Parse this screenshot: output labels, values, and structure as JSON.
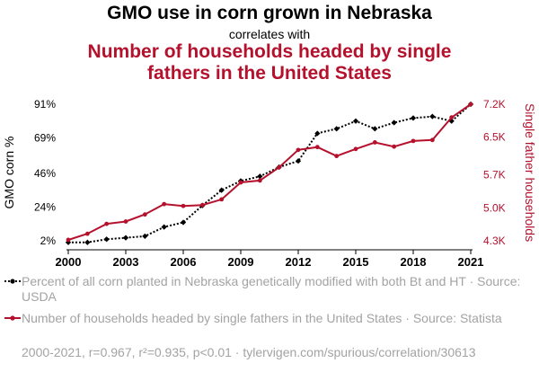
{
  "header": {
    "title": "GMO use in corn grown in Nebraska",
    "connector": "correlates with",
    "title2": "Number of households headed by single fathers in the United States"
  },
  "chart_data": {
    "type": "line",
    "x": [
      2000,
      2001,
      2002,
      2003,
      2004,
      2005,
      2006,
      2007,
      2008,
      2009,
      2010,
      2011,
      2012,
      2013,
      2014,
      2015,
      2016,
      2017,
      2018,
      2019,
      2020,
      2021
    ],
    "series": [
      {
        "name": "Percent of all corn planted in Nebraska genetically modified with both Bt and HT · Source: USDA",
        "axis": "left",
        "color": "#000000",
        "style": "dotted",
        "values": [
          1,
          1,
          3,
          4,
          5,
          11,
          14,
          25,
          35,
          41,
          44,
          50,
          54,
          72,
          75,
          80,
          75,
          79,
          82,
          83,
          80,
          91
        ]
      },
      {
        "name": "Number of households headed by single fathers in the United States · Source: Statista",
        "axis": "right",
        "color": "#b5112d",
        "style": "solid",
        "values": [
          4.32,
          4.45,
          4.66,
          4.71,
          4.86,
          5.08,
          5.04,
          5.06,
          5.18,
          5.54,
          5.58,
          5.86,
          6.23,
          6.29,
          6.1,
          6.25,
          6.39,
          6.3,
          6.42,
          6.44,
          6.92,
          7.2
        ]
      }
    ],
    "xticks": [
      "2000",
      "2003",
      "2006",
      "2009",
      "2012",
      "2015",
      "2018",
      "2021"
    ],
    "left_axis": {
      "label": "GMO corn %",
      "ticks": [
        "2%",
        "24%",
        "46%",
        "69%",
        "91%"
      ],
      "range": [
        2,
        91
      ]
    },
    "right_axis": {
      "label": "Single father households",
      "ticks": [
        "4.3K",
        "5.0K",
        "5.7K",
        "6.5K",
        "7.2K"
      ],
      "range": [
        4.3,
        7.2
      ]
    },
    "xrange": [
      2000,
      2021
    ],
    "grid": false
  },
  "legend": {
    "series1": "Percent of all corn planted in Nebraska genetically modified with both Bt and HT · Source: USDA",
    "series2": "Number of households headed by single fathers in the United States · Source: Statista"
  },
  "footer": "2000-2021, r=0.967, r²=0.935, p<0.01 · tylervigen.com/spurious/correlation/30613",
  "colors": {
    "red": "#b5112d",
    "black": "#000000",
    "muted": "#a3a3a3"
  }
}
